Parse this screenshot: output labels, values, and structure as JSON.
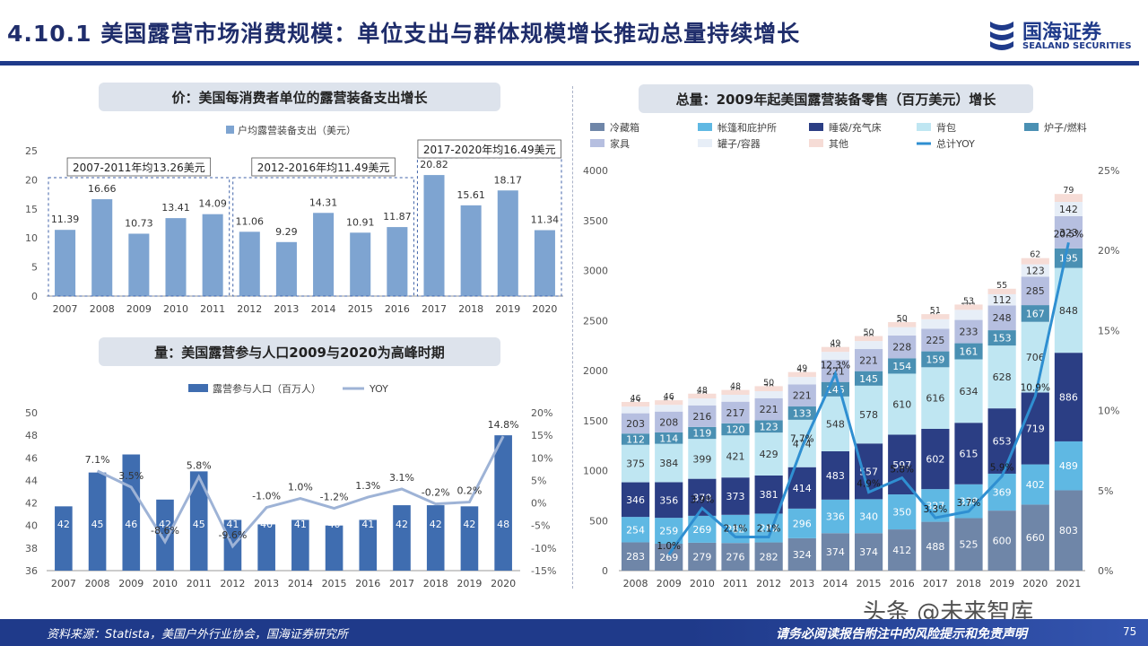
{
  "header": {
    "title": "4.10.1 美国露营市场消费规模：单位支出与群体规模增长推动总量持续增长",
    "logo_cn": "国海证券",
    "logo_en": "SEALAND SECURITIES"
  },
  "colors": {
    "brand": "#1f3a8a",
    "bar": "#7ea4d1",
    "line": "#9eb3d6"
  },
  "chart_data": [
    {
      "type": "bar",
      "title": "价：美国每消费者单位的露营装备支出增长",
      "legend": "户均露营装备支出（美元）",
      "categories": [
        "2007",
        "2008",
        "2009",
        "2010",
        "2011",
        "2012",
        "2013",
        "2014",
        "2015",
        "2016",
        "2017",
        "2018",
        "2019",
        "2020"
      ],
      "values": [
        11.39,
        16.66,
        10.73,
        13.41,
        14.09,
        11.06,
        9.29,
        14.31,
        10.91,
        11.87,
        20.82,
        15.61,
        18.17,
        11.34
      ],
      "value_labels": [
        "11.39",
        "16.66",
        "10.73",
        "13.41",
        "14.09",
        "11.06",
        "9.29",
        "14.31",
        "10.91",
        "11.87",
        "20.82",
        "15.61",
        "18.17",
        "11.34"
      ],
      "ylim": [
        0,
        25
      ],
      "yticks": [
        "0",
        "5",
        "10",
        "15",
        "20",
        "25"
      ],
      "annotations": [
        {
          "text": "2007-2011年均13.26美元",
          "from": 0,
          "to": 4
        },
        {
          "text": "2012-2016年均11.49美元",
          "from": 5,
          "to": 9
        },
        {
          "text": "2017-2020年均16.49美元",
          "from": 10,
          "to": 13
        }
      ]
    },
    {
      "type": "bar",
      "title": "量：美国露营参与人口2009与2020为高峰时期",
      "legend": [
        "露营参与人口（百万人）",
        "YOY"
      ],
      "categories": [
        "2007",
        "2008",
        "2009",
        "2010",
        "2011",
        "2012",
        "2013",
        "2014",
        "2015",
        "2016",
        "2017",
        "2018",
        "2019",
        "2020"
      ],
      "values": [
        41.7,
        44.7,
        46.3,
        42.3,
        44.8,
        40.5,
        40.1,
        40.5,
        40.0,
        40.5,
        41.8,
        41.8,
        41.7,
        48.0
      ],
      "value_labels": [
        "42",
        "45",
        "46",
        "42",
        "45",
        "41",
        "40",
        "41",
        "40",
        "41",
        "42",
        "42",
        "42",
        "48"
      ],
      "yoy": [
        null,
        7.1,
        3.5,
        -8.6,
        5.8,
        -9.6,
        -1.0,
        1.0,
        -1.2,
        1.3,
        3.1,
        -0.2,
        0.2,
        14.8
      ],
      "yoy_labels": [
        "",
        "7.1%",
        "3.5%",
        "-8.6%",
        "5.8%",
        "-9.6%",
        "-1.0%",
        "1.0%",
        "-1.2%",
        "1.3%",
        "3.1%",
        "-0.2%",
        "0.2%",
        "14.8%"
      ],
      "ylim": [
        36,
        50
      ],
      "yticks": [
        "36",
        "38",
        "40",
        "42",
        "44",
        "46",
        "48",
        "50"
      ],
      "y2lim": [
        -15,
        20
      ],
      "y2ticks": [
        "-15%",
        "-10%",
        "-5%",
        "0%",
        "5%",
        "10%",
        "15%",
        "20%"
      ]
    },
    {
      "type": "bar",
      "stacked": true,
      "title": "总量：2009年起美国露营装备零售（百万美元）增长",
      "categories": [
        "2008",
        "2009",
        "2010",
        "2011",
        "2012",
        "2013",
        "2014",
        "2015",
        "2016",
        "2017",
        "2018",
        "2019",
        "2020",
        "2021"
      ],
      "series": [
        {
          "name": "冷藏箱",
          "color": "#6f86a8",
          "values": [
            283,
            269,
            279,
            276,
            282,
            324,
            374,
            374,
            412,
            488,
            525,
            600,
            660,
            803
          ]
        },
        {
          "name": "帐篷和庇护所",
          "color": "#5fb8e3",
          "values": [
            254,
            259,
            269,
            282,
            288,
            296,
            336,
            340,
            350,
            327,
            338,
            369,
            402,
            489
          ]
        },
        {
          "name": "睡袋/充气床",
          "color": "#2b3e84",
          "values": [
            346,
            356,
            370,
            373,
            381,
            414,
            483,
            557,
            597,
            602,
            615,
            653,
            719,
            886
          ]
        },
        {
          "name": "背包",
          "color": "#bfe6f2",
          "values": [
            375,
            384,
            399,
            421,
            429,
            474,
            548,
            578,
            610,
            616,
            634,
            628,
            706,
            848
          ]
        },
        {
          "name": "炉子/燃料",
          "color": "#4a90b3",
          "values": [
            112,
            114,
            119,
            120,
            123,
            133,
            145,
            145,
            154,
            159,
            161,
            153,
            167,
            195
          ]
        },
        {
          "name": "家具",
          "color": "#b6bfe0",
          "values": [
            203,
            208,
            216,
            217,
            221,
            221,
            221,
            221,
            228,
            225,
            233,
            248,
            285,
            323
          ]
        },
        {
          "name": "罐子/容器",
          "color": "#e7eef7",
          "values": [
            67,
            67,
            69,
            69,
            70,
            74,
            80,
            80,
            83,
            96,
            101,
            112,
            123,
            142
          ]
        },
        {
          "name": "其他",
          "color": "#f6dcd6",
          "values": [
            46,
            46,
            48,
            48,
            50,
            49,
            49,
            50,
            50,
            51,
            53,
            55,
            62,
            79
          ]
        }
      ],
      "yoy_name": "总计YOY",
      "yoy": [
        null,
        1.0,
        3.9,
        2.1,
        2.1,
        7.7,
        12.3,
        4.9,
        5.8,
        3.3,
        3.7,
        5.9,
        10.9,
        20.5
      ],
      "yoy_labels": [
        "",
        "1.0%",
        "3.9%",
        "2.1%",
        "2.1%",
        "7.7%",
        "12.3%",
        "4.9%",
        "5.8%",
        "3.3%",
        "3.7%",
        "5.9%",
        "10.9%",
        "20.5%"
      ],
      "ylim": [
        0,
        4000
      ],
      "yticks": [
        "0",
        "500",
        "1000",
        "1500",
        "2000",
        "2500",
        "3000",
        "3500",
        "4000"
      ],
      "y2lim": [
        0,
        25
      ],
      "y2ticks": [
        "0%",
        "5%",
        "10%",
        "15%",
        "20%",
        "25%"
      ]
    }
  ],
  "footer": {
    "source": "资料来源：Statista，美国户外行业协会，国海证券研究所",
    "disclaimer": "请务必阅读报告附注中的风险提示和免责声明",
    "page": "75"
  },
  "watermark": "头条 @未来智库"
}
